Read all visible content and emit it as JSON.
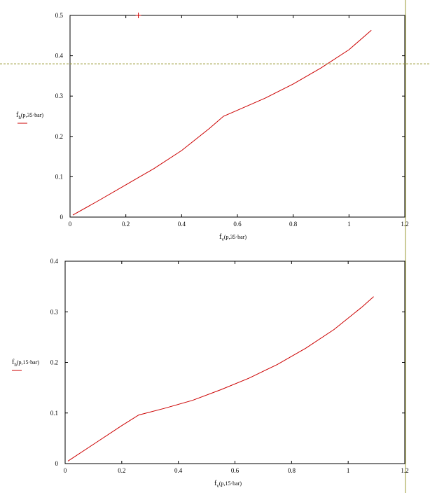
{
  "chart_data": [
    {
      "type": "line",
      "xlabel": {
        "f": "f",
        "sub": "v",
        "args": "(p,35·bar)"
      },
      "ylabel": {
        "f": "f",
        "sub": "h",
        "args": "(p,35·bar)"
      },
      "xlim": [
        0,
        1.2
      ],
      "ylim": [
        0,
        0.5
      ],
      "xticks": [
        "0",
        "0.2",
        "0.4",
        "0.6",
        "0.8",
        "1",
        "1.2"
      ],
      "yticks": [
        "0",
        "0.1",
        "0.2",
        "0.3",
        "0.4",
        "0.5"
      ],
      "grid": false,
      "series": [
        {
          "color": "#cc0000",
          "x": [
            0.01,
            0.1,
            0.2,
            0.3,
            0.4,
            0.5,
            0.55,
            0.6,
            0.7,
            0.8,
            0.9,
            1.0,
            1.08
          ],
          "y": [
            0.005,
            0.04,
            0.08,
            0.12,
            0.165,
            0.22,
            0.25,
            0.265,
            0.295,
            0.33,
            0.37,
            0.415,
            0.463
          ]
        }
      ],
      "marker": {
        "symbol": "+",
        "x": 0.245,
        "y": 0.5,
        "color": "#cc0000"
      },
      "crosshair_y": 0.38
    },
    {
      "type": "line",
      "xlabel": {
        "f": "f",
        "sub": "v",
        "args": "(p,15·bar)"
      },
      "ylabel": {
        "f": "f",
        "sub": "h",
        "args": "(p,15·bar)"
      },
      "xlim": [
        0,
        1.2
      ],
      "ylim": [
        0,
        0.4
      ],
      "xticks": [
        "0",
        "0.2",
        "0.4",
        "0.6",
        "0.8",
        "1",
        "1.2"
      ],
      "yticks": [
        "0",
        "0.1",
        "0.2",
        "0.3",
        "0.4"
      ],
      "grid": false,
      "series": [
        {
          "color": "#cc0000",
          "x": [
            0.01,
            0.1,
            0.2,
            0.26,
            0.35,
            0.45,
            0.55,
            0.65,
            0.75,
            0.85,
            0.95,
            1.05,
            1.09
          ],
          "y": [
            0.005,
            0.038,
            0.075,
            0.096,
            0.109,
            0.125,
            0.146,
            0.169,
            0.196,
            0.228,
            0.265,
            0.31,
            0.33
          ]
        }
      ]
    }
  ]
}
